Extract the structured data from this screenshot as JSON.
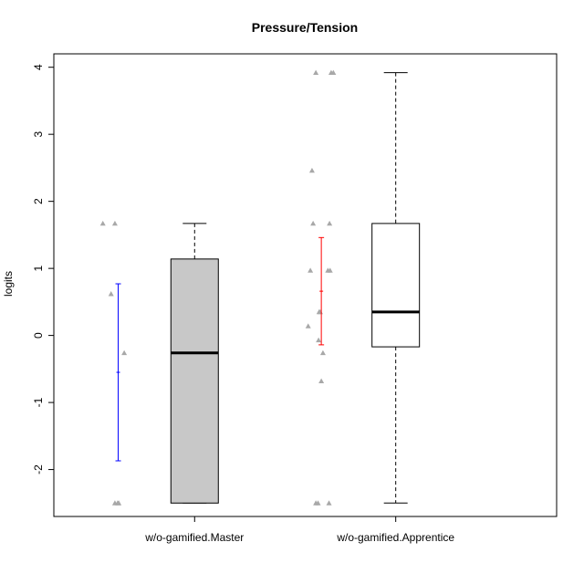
{
  "chart_data": {
    "type": "boxplot",
    "title": "Pressure/Tension",
    "xlabel": "",
    "ylabel": "logits",
    "ylim": [
      -2.7,
      4.2
    ],
    "yticks": [
      -2,
      -1,
      0,
      1,
      2,
      3,
      4
    ],
    "categories": [
      "w/o-gamified.Master",
      "w/o-gamified.Apprentice"
    ],
    "boxes": [
      {
        "name": "w/o-gamified.Master",
        "fill": "#c8c8c8",
        "whisker_low": -2.5,
        "q1": -2.5,
        "median": -0.26,
        "q3": 1.14,
        "whisker_high": 1.67
      },
      {
        "name": "w/o-gamified.Apprentice",
        "fill": "#ffffff",
        "whisker_low": -2.5,
        "q1": -0.17,
        "median": 0.35,
        "q3": 1.67,
        "whisker_high": 3.92
      }
    ],
    "error_bars": [
      {
        "name": "w/o-gamified.Master",
        "mean": -0.55,
        "lower": -1.87,
        "upper": 0.77,
        "color": "#0000ff"
      },
      {
        "name": "w/o-gamified.Apprentice",
        "mean": 0.66,
        "lower": -0.14,
        "upper": 1.46,
        "color": "#ff0000"
      }
    ],
    "points": [
      {
        "group": "w/o-gamified.Master",
        "offsets": [
          -0.28,
          -0.06,
          -0.13,
          0.11,
          -0.06,
          -0.01,
          0.01
        ],
        "values": [
          1.67,
          1.67,
          0.62,
          -0.26,
          -2.5,
          -2.5,
          -2.5
        ]
      },
      {
        "group": "w/o-gamified.Apprentice",
        "offsets": [
          -0.1,
          0.18,
          0.22,
          -0.17,
          -0.15,
          0.15,
          -0.2,
          0.12,
          0.16,
          -0.04,
          -0.02,
          -0.24,
          -0.05,
          0.03,
          0.0,
          -0.1,
          -0.06,
          0.14
        ],
        "values": [
          3.92,
          3.92,
          3.92,
          2.46,
          1.67,
          1.67,
          0.97,
          0.97,
          0.97,
          0.35,
          0.35,
          0.14,
          -0.07,
          -0.26,
          -0.68,
          -2.5,
          -2.5,
          -2.5
        ]
      }
    ],
    "point_color": "#a8a8a8",
    "box_positions": [
      0.28,
      0.68
    ],
    "error_positions": [
      0.128,
      0.532
    ]
  }
}
